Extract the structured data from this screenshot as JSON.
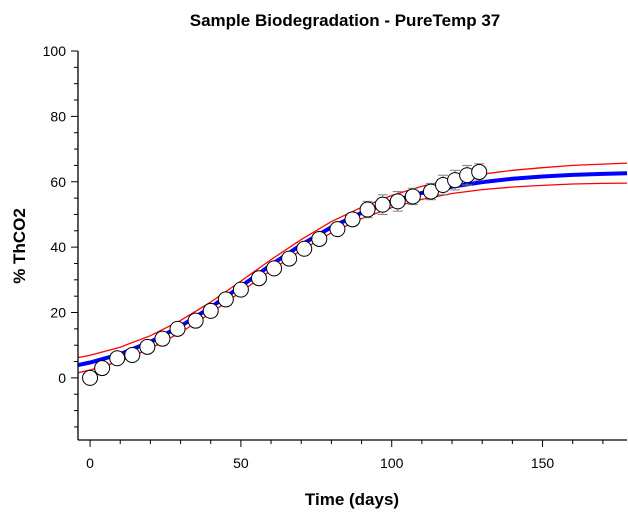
{
  "chart_data": {
    "type": "scatter",
    "title": "Sample Biodegradation - PureTemp 37",
    "xlabel": "Time (days)",
    "ylabel": "% ThCO2",
    "xlim": [
      -4,
      178
    ],
    "ylim": [
      -19,
      100
    ],
    "xticks": [
      0,
      50,
      100,
      150
    ],
    "yticks": [
      0,
      20,
      40,
      60,
      80,
      100
    ],
    "grid": false,
    "legend": "none",
    "colors": {
      "fit": "#0000ff",
      "confidence": "#ff0000",
      "points": "#ffffff",
      "error_bars": "#808080"
    },
    "observed": {
      "x": [
        0,
        4,
        9,
        14,
        19,
        24,
        29,
        35,
        40,
        45,
        50,
        56,
        61,
        66,
        71,
        76,
        82,
        87,
        92,
        97,
        102,
        107,
        113,
        117,
        121,
        125,
        129
      ],
      "y": [
        0,
        3,
        6,
        7,
        9.5,
        12,
        15,
        17.5,
        20.5,
        24,
        27,
        30.5,
        33.5,
        36.5,
        39.5,
        42.5,
        45.5,
        48.5,
        51.5,
        53,
        54,
        55.5,
        57,
        59,
        60.5,
        62,
        63
      ],
      "error": [
        0,
        0,
        0,
        0,
        0,
        0,
        0,
        0,
        0,
        0,
        0,
        0,
        0,
        0,
        0,
        0,
        1.5,
        2,
        2.5,
        3,
        3,
        2.5,
        2.5,
        3,
        3,
        3,
        2.5
      ]
    },
    "fit_curve": {
      "x": [
        -4,
        0,
        10,
        20,
        30,
        40,
        50,
        60,
        70,
        80,
        90,
        100,
        110,
        120,
        130,
        140,
        150,
        160,
        170,
        178
      ],
      "y": [
        3.9,
        4.7,
        7.3,
        11.0,
        15.8,
        21.6,
        28.0,
        34.6,
        40.7,
        46.1,
        50.5,
        54.0,
        56.6,
        58.5,
        59.9,
        60.9,
        61.6,
        62.1,
        62.4,
        62.6
      ]
    },
    "upper_band": {
      "x": [
        -4,
        0,
        10,
        20,
        30,
        40,
        50,
        60,
        70,
        80,
        90,
        100,
        110,
        120,
        130,
        140,
        150,
        160,
        170,
        178
      ],
      "y": [
        6.2,
        6.9,
        9.4,
        12.9,
        17.6,
        23.2,
        29.6,
        36.2,
        42.3,
        47.8,
        52.2,
        55.8,
        58.6,
        60.7,
        62.3,
        63.5,
        64.3,
        65.0,
        65.4,
        65.7
      ]
    },
    "lower_band": {
      "x": [
        -4,
        0,
        10,
        20,
        30,
        40,
        50,
        60,
        70,
        80,
        90,
        100,
        110,
        120,
        130,
        140,
        150,
        160,
        170,
        178
      ],
      "y": [
        1.6,
        2.4,
        5.1,
        9.0,
        13.9,
        19.8,
        26.3,
        32.9,
        39.0,
        44.4,
        48.7,
        52.1,
        54.6,
        56.4,
        57.6,
        58.4,
        58.9,
        59.3,
        59.5,
        59.6
      ]
    }
  }
}
